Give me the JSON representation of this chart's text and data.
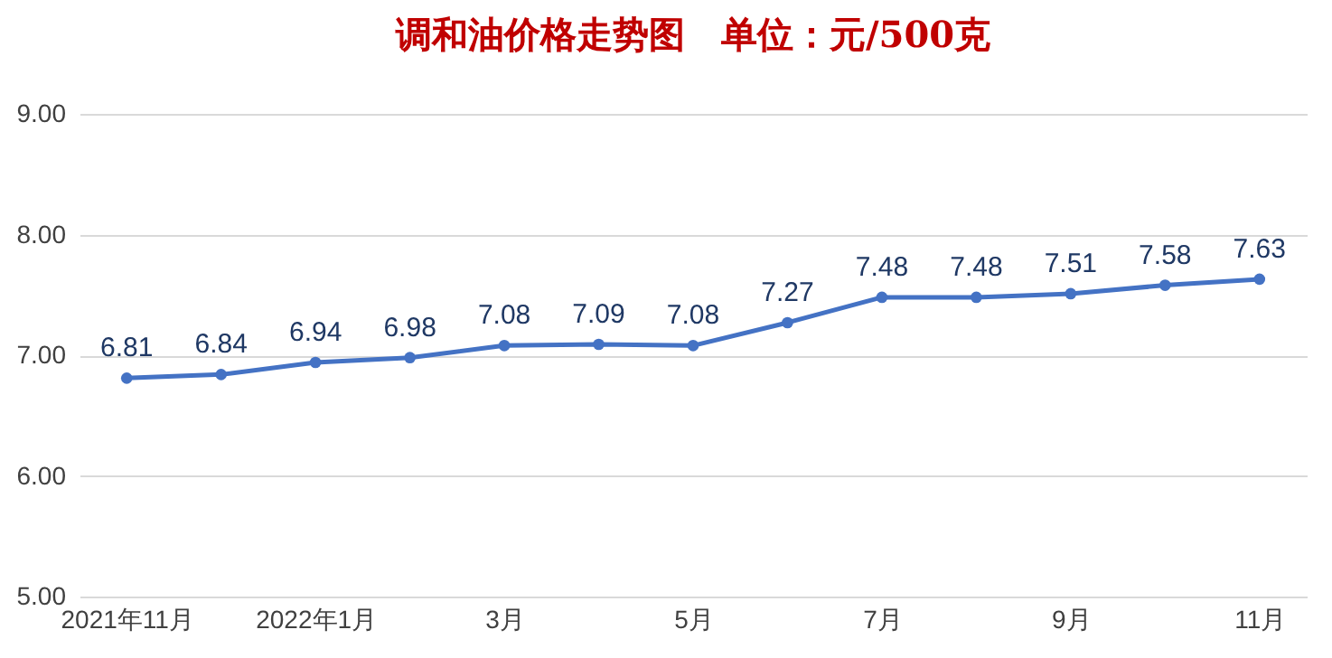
{
  "chart_data": {
    "type": "line",
    "title": "调和油价格走势图　单位：元/500克",
    "categories": [
      "2021年11月",
      null,
      "2022年1月",
      null,
      "3月",
      null,
      "5月",
      null,
      "7月",
      null,
      "9月",
      null,
      "11月"
    ],
    "series": [
      {
        "color": "#4472c4",
        "values": [
          6.81,
          6.84,
          6.94,
          6.98,
          7.08,
          7.09,
          7.08,
          7.27,
          7.48,
          7.48,
          7.51,
          7.58,
          7.63
        ]
      }
    ],
    "ylim": [
      5,
      9
    ],
    "yticks": [
      {
        "value": 5,
        "label": "5.00"
      },
      {
        "value": 6,
        "label": "6.00"
      },
      {
        "value": 7,
        "label": "7.00"
      },
      {
        "value": 8,
        "label": "8.00"
      },
      {
        "value": 9,
        "label": "9.00"
      }
    ],
    "grid": "y",
    "marker": "circle",
    "line_style": "solid",
    "data_labels": true,
    "legend": false
  }
}
